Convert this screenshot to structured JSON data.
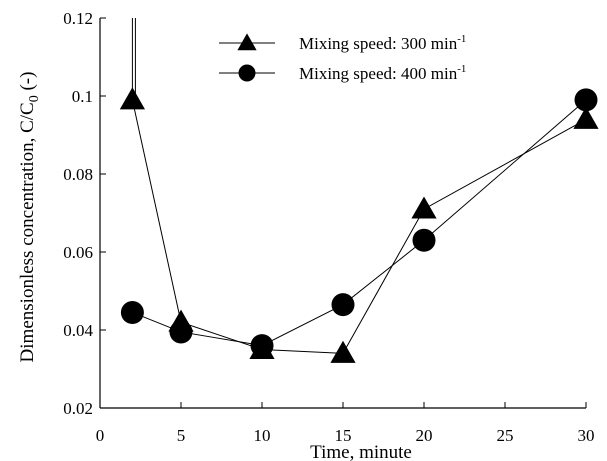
{
  "chart_data": {
    "type": "line",
    "title": "",
    "xlabel": "Time, minute",
    "ylabel": {
      "text": "Dimensionless concentration, C/C",
      "subscript": "0",
      "suffix": " (-)"
    },
    "xlim": [
      0,
      30
    ],
    "ylim": [
      0.02,
      0.12
    ],
    "xticks": [
      0,
      5,
      10,
      15,
      20,
      25,
      30
    ],
    "yticks": [
      0.02,
      0.04,
      0.06,
      0.08,
      0.1,
      0.12
    ],
    "xtick_labels": [
      "0",
      "5",
      "10",
      "15",
      "20",
      "25",
      "30"
    ],
    "ytick_labels": [
      "0.02",
      "0.04",
      "0.06",
      "0.08",
      "0.1",
      "0.12"
    ],
    "grid": false,
    "legend_position": "top-center",
    "series": [
      {
        "name": "Mixing speed: 300 min",
        "unit_superscript": "-1",
        "marker": "triangle",
        "x": [
          2,
          5,
          10,
          15,
          20,
          30
        ],
        "y": [
          0.099,
          0.042,
          0.035,
          0.034,
          0.071,
          0.094
        ],
        "lead_in": {
          "x": 2,
          "y_from": 0.12
        }
      },
      {
        "name": "Mixing speed:  400 min",
        "unit_superscript": "-1",
        "marker": "circle",
        "x": [
          2,
          5,
          10,
          15,
          20,
          30
        ],
        "y": [
          0.0445,
          0.0395,
          0.036,
          0.0465,
          0.063,
          0.099
        ]
      }
    ]
  },
  "colors": {
    "line": "#000000",
    "marker": "#000000",
    "background": "#ffffff"
  }
}
